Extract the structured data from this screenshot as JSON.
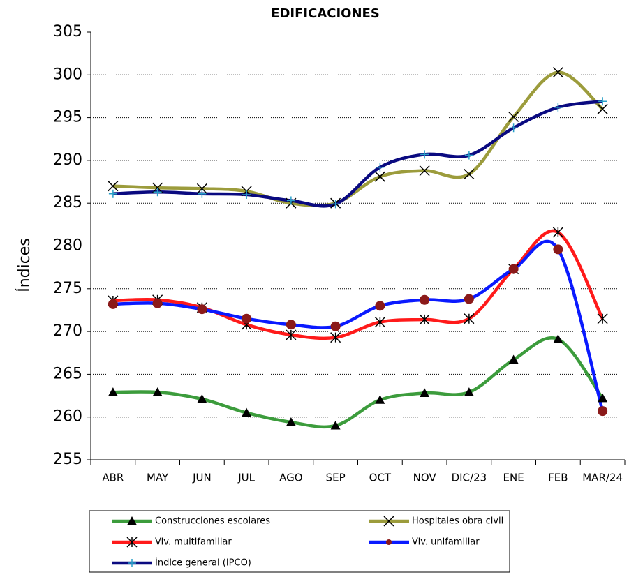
{
  "chart_data": {
    "type": "line",
    "title": "EDIFICACIONES",
    "y_label": "Índices",
    "categories": [
      "ABR",
      "MAY",
      "JUN",
      "JUL",
      "AGO",
      "SEP",
      "OCT",
      "NOV",
      "DIC/23",
      "ENE",
      "FEB",
      "MAR/24"
    ],
    "ylim": [
      255,
      305
    ],
    "yticks": [
      255,
      260,
      265,
      270,
      275,
      280,
      285,
      290,
      295,
      300,
      305
    ],
    "grid": true,
    "legend": "bottom",
    "smooth": true,
    "series": [
      {
        "name": "Construcciones escolares",
        "color": "#3c9c3c",
        "marker": "triangle",
        "marker_color": "#000000",
        "values": [
          262.9,
          262.9,
          262.1,
          260.5,
          259.4,
          259.0,
          262.0,
          262.8,
          262.9,
          266.7,
          269.1,
          262.2
        ]
      },
      {
        "name": "Hospitales obra civil",
        "color": "#9c9c3c",
        "marker": "x",
        "marker_color": "#000000",
        "values": [
          287.0,
          286.8,
          286.7,
          286.4,
          285.0,
          285.0,
          288.1,
          288.8,
          288.4,
          295.1,
          300.3,
          296.0
        ]
      },
      {
        "name": "Viv. multifamiliar",
        "color": "#ff1a1a",
        "marker": "star",
        "marker_color": "#000000",
        "values": [
          273.6,
          273.7,
          272.8,
          270.8,
          269.6,
          269.3,
          271.1,
          271.4,
          271.5,
          277.3,
          281.6,
          271.5
        ]
      },
      {
        "name": "Viv. unifamiliar",
        "color": "#0a1aff",
        "marker": "circle",
        "marker_color": "#8b1a1a",
        "values": [
          273.2,
          273.3,
          272.6,
          271.5,
          270.8,
          270.6,
          273.0,
          273.7,
          273.8,
          277.3,
          279.6,
          260.7
        ]
      },
      {
        "name": "Índice general (IPCO)",
        "color": "#0a0a80",
        "marker": "plus",
        "marker_color": "#2aa0c8",
        "values": [
          286.1,
          286.3,
          286.1,
          286.0,
          285.3,
          284.9,
          289.2,
          290.7,
          290.6,
          293.8,
          296.2,
          296.9
        ]
      }
    ]
  }
}
